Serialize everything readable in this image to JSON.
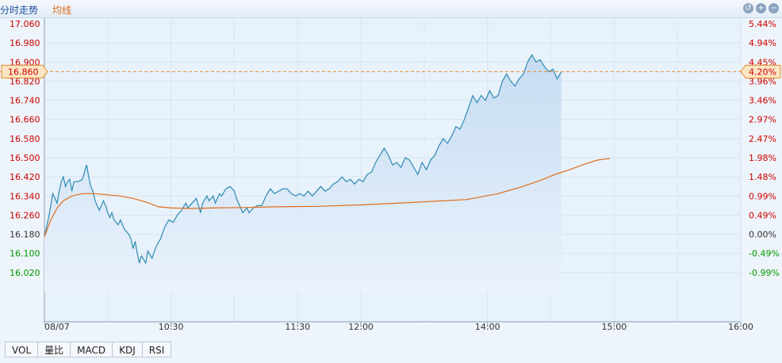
{
  "header": {
    "title": "分时走势",
    "legend_avg": "均线"
  },
  "icons": {
    "reset": "undo-icon",
    "zoom_in": "plus-icon",
    "zoom_out": "minus-icon"
  },
  "tabs": [
    "VOL",
    "量比",
    "MACD",
    "KDJ",
    "RSI"
  ],
  "colors": {
    "price_line": "#2c8ab3",
    "avg_line": "#e06c18",
    "up": "#cc0000",
    "down": "#009900",
    "ref": "#e88a2a",
    "area_top": "#c6dcf3",
    "area_bottom": "#eaf2fb"
  },
  "chart_data": {
    "type": "line",
    "title": "",
    "xlabel": "",
    "ylabel": "",
    "ylim": [
      15.94,
      17.06
    ],
    "prev_close": 16.18,
    "current": {
      "price": "16.860",
      "pct": "4.20%"
    },
    "y_ticks": [
      "17.060",
      "16.980",
      "16.900",
      "16.820",
      "16.740",
      "16.660",
      "16.580",
      "16.500",
      "16.420",
      "16.340",
      "16.260",
      "16.180",
      "16.100",
      "16.020"
    ],
    "y_ticks_pct": [
      "5.44%",
      "4.94%",
      "4.45%",
      "3.96%",
      "3.46%",
      "2.97%",
      "2.47%",
      "1.98%",
      "1.48%",
      "0.99%",
      "0.49%",
      "0.00%",
      "-0.49%",
      "-0.99%"
    ],
    "x_ticks": [
      {
        "label": "08/07",
        "t": 0
      },
      {
        "label": "10:30",
        "t": 60
      },
      {
        "label": "11:30",
        "t": 120
      },
      {
        "label": "12:00",
        "t": 150
      },
      {
        "label": "14:00",
        "t": 210
      },
      {
        "label": "15:00",
        "t": 270
      },
      {
        "label": "16:00",
        "t": 330
      }
    ],
    "grid_t": [
      30,
      90,
      180,
      240,
      300
    ],
    "grid": true,
    "series": [
      {
        "key": "price",
        "points": [
          [
            0,
            16.17
          ],
          [
            2,
            16.25
          ],
          [
            3,
            16.3
          ],
          [
            4,
            16.35
          ],
          [
            5,
            16.33
          ],
          [
            6,
            16.31
          ],
          [
            7,
            16.36
          ],
          [
            8,
            16.4
          ],
          [
            9,
            16.42
          ],
          [
            10,
            16.38
          ],
          [
            11,
            16.4
          ],
          [
            12,
            16.41
          ],
          [
            13,
            16.36
          ],
          [
            14,
            16.4
          ],
          [
            16,
            16.4
          ],
          [
            18,
            16.41
          ],
          [
            19,
            16.44
          ],
          [
            20,
            16.47
          ],
          [
            21,
            16.42
          ],
          [
            22,
            16.38
          ],
          [
            23,
            16.36
          ],
          [
            24,
            16.32
          ],
          [
            25,
            16.3
          ],
          [
            26,
            16.28
          ],
          [
            28,
            16.32
          ],
          [
            29,
            16.3
          ],
          [
            30,
            16.27
          ],
          [
            31,
            16.25
          ],
          [
            32,
            16.27
          ],
          [
            33,
            16.24
          ],
          [
            35,
            16.22
          ],
          [
            36,
            16.24
          ],
          [
            38,
            16.2
          ],
          [
            40,
            16.18
          ],
          [
            41,
            16.16
          ],
          [
            42,
            16.12
          ],
          [
            43,
            16.15
          ],
          [
            44,
            16.1
          ],
          [
            45,
            16.06
          ],
          [
            46,
            16.09
          ],
          [
            48,
            16.06
          ],
          [
            49,
            16.11
          ],
          [
            51,
            16.08
          ],
          [
            53,
            16.13
          ],
          [
            55,
            16.16
          ],
          [
            57,
            16.21
          ],
          [
            59,
            16.24
          ],
          [
            61,
            16.23
          ],
          [
            63,
            16.26
          ],
          [
            65,
            16.28
          ],
          [
            67,
            16.31
          ],
          [
            68,
            16.29
          ],
          [
            70,
            16.31
          ],
          [
            72,
            16.33
          ],
          [
            73,
            16.3
          ],
          [
            74,
            16.27
          ],
          [
            75,
            16.31
          ],
          [
            77,
            16.34
          ],
          [
            78,
            16.32
          ],
          [
            80,
            16.34
          ],
          [
            81,
            16.31
          ],
          [
            83,
            16.35
          ],
          [
            84,
            16.34
          ],
          [
            86,
            16.37
          ],
          [
            88,
            16.38
          ],
          [
            90,
            16.36
          ],
          [
            91,
            16.33
          ],
          [
            92,
            16.31
          ],
          [
            93,
            16.29
          ],
          [
            94,
            16.27
          ],
          [
            96,
            16.29
          ],
          [
            97,
            16.27
          ],
          [
            99,
            16.29
          ],
          [
            101,
            16.3
          ],
          [
            103,
            16.3
          ],
          [
            105,
            16.34
          ],
          [
            107,
            16.37
          ],
          [
            109,
            16.35
          ],
          [
            111,
            16.36
          ],
          [
            113,
            16.37
          ],
          [
            115,
            16.37
          ],
          [
            117,
            16.35
          ],
          [
            119,
            16.34
          ],
          [
            121,
            16.35
          ],
          [
            123,
            16.34
          ],
          [
            125,
            16.36
          ],
          [
            127,
            16.34
          ],
          [
            129,
            16.36
          ],
          [
            131,
            16.38
          ],
          [
            133,
            16.36
          ],
          [
            135,
            16.37
          ],
          [
            137,
            16.39
          ],
          [
            139,
            16.4
          ],
          [
            141,
            16.42
          ],
          [
            143,
            16.4
          ],
          [
            145,
            16.41
          ],
          [
            147,
            16.39
          ],
          [
            149,
            16.41
          ],
          [
            151,
            16.4
          ],
          [
            153,
            16.43
          ],
          [
            155,
            16.44
          ],
          [
            157,
            16.48
          ],
          [
            159,
            16.51
          ],
          [
            161,
            16.54
          ],
          [
            163,
            16.51
          ],
          [
            165,
            16.47
          ],
          [
            167,
            16.48
          ],
          [
            169,
            16.46
          ],
          [
            171,
            16.5
          ],
          [
            173,
            16.49
          ],
          [
            175,
            16.46
          ],
          [
            177,
            16.43
          ],
          [
            179,
            16.48
          ],
          [
            181,
            16.45
          ],
          [
            183,
            16.49
          ],
          [
            185,
            16.51
          ],
          [
            187,
            16.55
          ],
          [
            189,
            16.58
          ],
          [
            191,
            16.56
          ],
          [
            193,
            16.59
          ],
          [
            195,
            16.63
          ],
          [
            197,
            16.62
          ],
          [
            199,
            16.66
          ],
          [
            201,
            16.71
          ],
          [
            203,
            16.76
          ],
          [
            205,
            16.73
          ],
          [
            207,
            16.76
          ],
          [
            209,
            16.74
          ],
          [
            211,
            16.78
          ],
          [
            213,
            16.75
          ],
          [
            215,
            16.76
          ],
          [
            217,
            16.82
          ],
          [
            219,
            16.85
          ],
          [
            221,
            16.82
          ],
          [
            223,
            16.8
          ],
          [
            225,
            16.83
          ],
          [
            227,
            16.85
          ],
          [
            229,
            16.9
          ],
          [
            231,
            16.93
          ],
          [
            233,
            16.9
          ],
          [
            235,
            16.91
          ],
          [
            237,
            16.88
          ],
          [
            239,
            16.86
          ],
          [
            241,
            16.87
          ],
          [
            243,
            16.83
          ],
          [
            245,
            16.86
          ]
        ]
      },
      {
        "key": "avg",
        "points": [
          [
            0,
            16.17
          ],
          [
            3,
            16.24
          ],
          [
            6,
            16.29
          ],
          [
            9,
            16.32
          ],
          [
            13,
            16.34
          ],
          [
            18,
            16.35
          ],
          [
            24,
            16.35
          ],
          [
            30,
            16.345
          ],
          [
            36,
            16.34
          ],
          [
            42,
            16.33
          ],
          [
            48,
            16.315
          ],
          [
            54,
            16.295
          ],
          [
            60,
            16.29
          ],
          [
            70,
            16.288
          ],
          [
            80,
            16.29
          ],
          [
            95,
            16.292
          ],
          [
            110,
            16.295
          ],
          [
            130,
            16.297
          ],
          [
            150,
            16.303
          ],
          [
            170,
            16.311
          ],
          [
            185,
            16.318
          ],
          [
            200,
            16.325
          ],
          [
            215,
            16.35
          ],
          [
            225,
            16.375
          ],
          [
            235,
            16.405
          ],
          [
            242,
            16.43
          ],
          [
            249,
            16.45
          ],
          [
            255,
            16.47
          ],
          [
            262,
            16.49
          ],
          [
            268,
            16.497
          ]
        ]
      }
    ]
  }
}
